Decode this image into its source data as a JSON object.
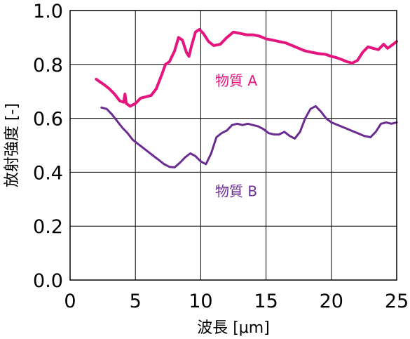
{
  "chart_data": {
    "type": "line",
    "xlabel": "波長 [μm]",
    "ylabel": "放射強度 [-]",
    "xlim": [
      0,
      25
    ],
    "ylim": [
      0,
      1.0
    ],
    "x_ticks": [
      0,
      5,
      10,
      15,
      20,
      25
    ],
    "y_ticks": [
      0.0,
      0.2,
      0.4,
      0.6,
      0.8,
      1.0
    ],
    "x_tick_labels": [
      "0",
      "5",
      "10",
      "15",
      "20",
      "25"
    ],
    "y_tick_labels": [
      "0.0",
      "0.2",
      "0.4",
      "0.6",
      "0.8",
      "1.0"
    ],
    "grid": true,
    "series": [
      {
        "name": "物質 A",
        "color": "#e5157f",
        "label_at": [
          11.0,
          0.74
        ],
        "x": [
          2.0,
          2.3,
          2.6,
          3.0,
          3.4,
          3.8,
          4.1,
          4.2,
          4.3,
          4.6,
          5.0,
          5.4,
          5.8,
          6.2,
          6.6,
          7.0,
          7.3,
          7.6,
          8.0,
          8.3,
          8.6,
          8.9,
          9.1,
          9.3,
          9.6,
          9.9,
          10.2,
          10.6,
          11.0,
          11.5,
          12.0,
          12.5,
          13.0,
          13.5,
          14.0,
          14.5,
          15.0,
          15.5,
          16.0,
          16.5,
          17.0,
          17.5,
          18.0,
          18.5,
          19.0,
          19.5,
          20.0,
          20.4,
          20.8,
          21.2,
          21.6,
          22.0,
          22.4,
          22.8,
          23.2,
          23.6,
          24.0,
          24.3,
          24.6,
          25.0
        ],
        "y": [
          0.745,
          0.735,
          0.725,
          0.71,
          0.69,
          0.665,
          0.66,
          0.69,
          0.655,
          0.645,
          0.655,
          0.675,
          0.68,
          0.685,
          0.71,
          0.76,
          0.8,
          0.81,
          0.85,
          0.9,
          0.89,
          0.845,
          0.83,
          0.87,
          0.92,
          0.93,
          0.915,
          0.885,
          0.87,
          0.875,
          0.9,
          0.92,
          0.915,
          0.91,
          0.91,
          0.905,
          0.895,
          0.89,
          0.885,
          0.88,
          0.87,
          0.86,
          0.85,
          0.845,
          0.84,
          0.838,
          0.83,
          0.825,
          0.818,
          0.81,
          0.805,
          0.815,
          0.845,
          0.865,
          0.86,
          0.855,
          0.875,
          0.86,
          0.87,
          0.885
        ]
      },
      {
        "name": "物質 B",
        "color": "#6a2c91",
        "label_at": [
          11.0,
          0.33
        ],
        "x": [
          2.4,
          2.8,
          3.2,
          3.6,
          4.0,
          4.4,
          4.8,
          5.2,
          5.6,
          6.0,
          6.4,
          6.8,
          7.2,
          7.6,
          8.0,
          8.4,
          8.8,
          9.2,
          9.6,
          10.0,
          10.4,
          10.8,
          11.2,
          11.6,
          12.0,
          12.4,
          12.8,
          13.2,
          13.6,
          14.0,
          14.4,
          14.8,
          15.2,
          15.6,
          16.0,
          16.4,
          16.8,
          17.2,
          17.6,
          18.0,
          18.4,
          18.8,
          19.2,
          19.6,
          20.0,
          20.5,
          21.0,
          21.5,
          22.0,
          22.5,
          23.0,
          23.4,
          23.8,
          24.2,
          24.6,
          25.0
        ],
        "y": [
          0.64,
          0.635,
          0.615,
          0.59,
          0.565,
          0.545,
          0.52,
          0.505,
          0.49,
          0.475,
          0.46,
          0.445,
          0.43,
          0.42,
          0.418,
          0.435,
          0.455,
          0.47,
          0.46,
          0.44,
          0.43,
          0.47,
          0.53,
          0.545,
          0.555,
          0.575,
          0.58,
          0.575,
          0.58,
          0.575,
          0.57,
          0.56,
          0.545,
          0.54,
          0.54,
          0.55,
          0.535,
          0.525,
          0.55,
          0.6,
          0.635,
          0.645,
          0.625,
          0.6,
          0.585,
          0.575,
          0.565,
          0.555,
          0.545,
          0.535,
          0.53,
          0.55,
          0.58,
          0.585,
          0.58,
          0.585
        ]
      }
    ]
  }
}
